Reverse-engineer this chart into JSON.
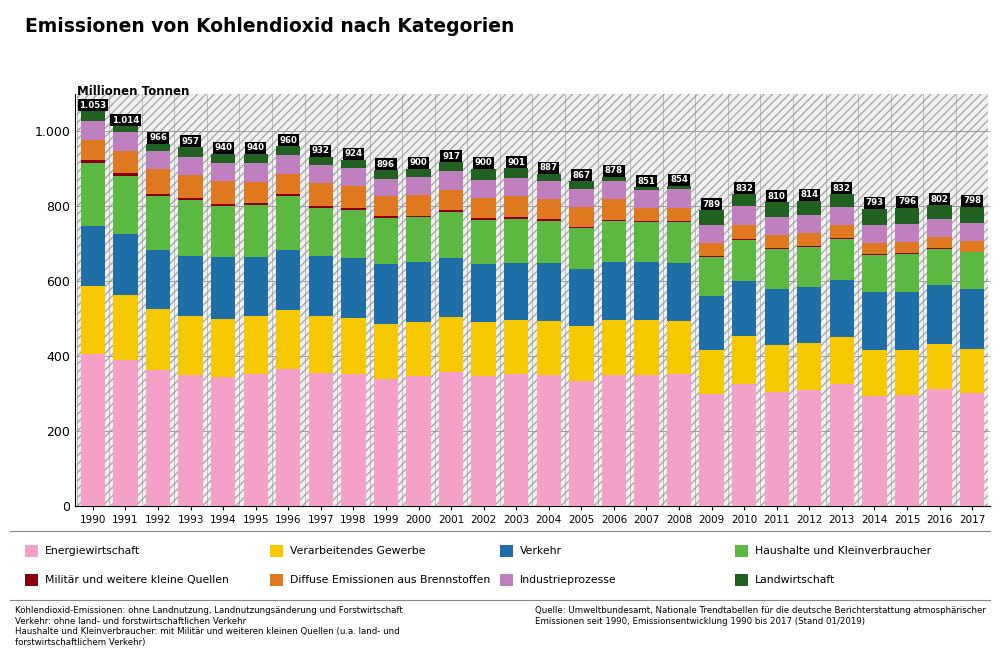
{
  "title": "Emissionen von Kohlendioxid nach Kategorien",
  "ylabel": "Millionen Tonnen",
  "years": [
    1990,
    1991,
    1992,
    1993,
    1994,
    1995,
    1996,
    1997,
    1998,
    1999,
    2000,
    2001,
    2002,
    2003,
    2004,
    2005,
    2006,
    2007,
    2008,
    2009,
    2010,
    2011,
    2012,
    2013,
    2014,
    2015,
    2016,
    2017
  ],
  "totals": [
    1053,
    1014,
    966,
    957,
    940,
    940,
    960,
    932,
    924,
    896,
    900,
    917,
    900,
    901,
    887,
    867,
    878,
    851,
    854,
    789,
    832,
    810,
    814,
    832,
    793,
    796,
    802,
    798
  ],
  "categories": [
    "Energiewirtschaft",
    "Verarbeitendes Gewerbe",
    "Verkehr",
    "Haushalte und Kleinverbraucher",
    "Militär und weitere kleine Quellen",
    "Diffuse Emissionen aus Brennstoffen",
    "Industrieprozesse",
    "Landwirtschaft"
  ],
  "colors": [
    "#F5A0C8",
    "#F5C800",
    "#1E6EA8",
    "#5BB840",
    "#8B0010",
    "#E07820",
    "#C080C0",
    "#206020"
  ],
  "data": {
    "Energiewirtschaft": [
      406,
      390,
      363,
      350,
      345,
      353,
      366,
      354,
      351,
      339,
      346,
      357,
      347,
      353,
      348,
      334,
      348,
      349,
      353,
      299,
      325,
      304,
      309,
      325,
      294,
      295,
      311,
      300
    ],
    "Verarbeitendes Gewerbe": [
      182,
      174,
      162,
      158,
      155,
      153,
      157,
      153,
      150,
      146,
      146,
      146,
      143,
      143,
      146,
      146,
      148,
      146,
      140,
      116,
      128,
      126,
      126,
      126,
      123,
      120,
      120,
      118
    ],
    "Verkehr": [
      160,
      161,
      158,
      160,
      163,
      158,
      160,
      161,
      160,
      160,
      160,
      158,
      156,
      153,
      153,
      153,
      156,
      156,
      156,
      146,
      148,
      150,
      150,
      153,
      155,
      156,
      158,
      161
    ],
    "Haushalte und Kleinverbraucher": [
      168,
      156,
      143,
      148,
      138,
      138,
      143,
      128,
      128,
      123,
      118,
      123,
      118,
      118,
      113,
      108,
      108,
      106,
      108,
      103,
      108,
      106,
      106,
      108,
      98,
      100,
      98,
      98
    ],
    "Militär und weitere kleine Quellen": [
      8,
      8,
      7,
      7,
      6,
      6,
      6,
      5,
      5,
      5,
      5,
      5,
      5,
      5,
      5,
      4,
      4,
      4,
      4,
      3,
      3,
      3,
      3,
      3,
      3,
      3,
      2,
      2
    ],
    "Diffuse Emissionen aus Brennstoffen": [
      54,
      59,
      67,
      61,
      59,
      57,
      54,
      61,
      59,
      54,
      54,
      54,
      54,
      54,
      54,
      54,
      54,
      34,
      34,
      34,
      39,
      34,
      34,
      34,
      29,
      31,
      29,
      29
    ],
    "Industrieprozesse": [
      50,
      51,
      47,
      48,
      49,
      50,
      50,
      48,
      48,
      46,
      48,
      50,
      48,
      48,
      48,
      48,
      50,
      48,
      50,
      48,
      50,
      48,
      48,
      50,
      48,
      48,
      48,
      48
    ],
    "Landwirtschaft": [
      25,
      15,
      19,
      25,
      25,
      25,
      24,
      22,
      23,
      23,
      23,
      24,
      29,
      27,
      20,
      20,
      10,
      8,
      9,
      40,
      31,
      39,
      38,
      33,
      43,
      43,
      36,
      42
    ]
  },
  "footnote_left": "Kohlendioxid-Emissionen: ohne Landnutzung, Landnutzungsänderung und Forstwirtschaft\nVerkehr: ohne land- und forstwirtschaftlichen Verkehr\nHaushalte und Kleinverbraucher: mit Militär und weiteren kleinen Quellen (u.a. land- und\nforstwirtschaftlichem Verkehr)",
  "footnote_right": "Quelle: Umweltbundesamt, Nationale Trendtabellen für die deutsche Berichterstattung atmosphärischer\nEmissionen seit 1990, Emissionsentwicklung 1990 bis 2017 (Stand 01/2019)"
}
